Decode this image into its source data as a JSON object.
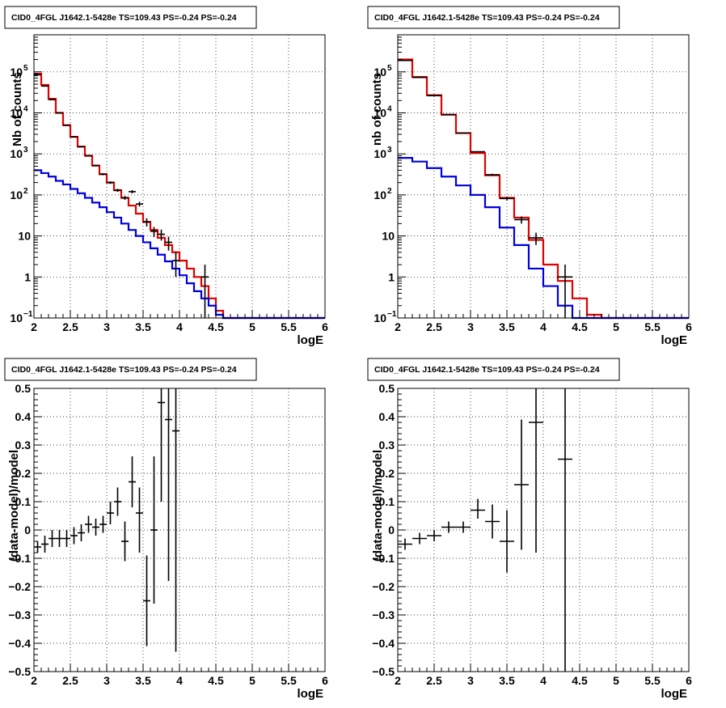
{
  "chart_data": [
    {
      "type": "histogram",
      "title": "CID0_4FGL J1642.1-5428e TS=109.43 PS=-0.24 PS=-0.24",
      "xlabel": "logE",
      "ylabel": "Nb of counts",
      "xlim": [
        2,
        6
      ],
      "ylim": [
        0.1,
        800000
      ],
      "yscale": "log",
      "grid": true,
      "xticks": [
        "2",
        "2.5",
        "3",
        "3.5",
        "4",
        "4.5",
        "5",
        "5.5",
        "6"
      ],
      "yticks": [
        {
          "base": "10",
          "exp": "−1",
          "value": 0.1
        },
        {
          "base": "1",
          "exp": "",
          "value": 1
        },
        {
          "base": "10",
          "exp": "",
          "value": 10
        },
        {
          "base": "10",
          "exp": "2",
          "value": 100
        },
        {
          "base": "10",
          "exp": "3",
          "value": 1000
        },
        {
          "base": "10",
          "exp": "4",
          "value": 10000
        },
        {
          "base": "10",
          "exp": "5",
          "value": 100000
        }
      ],
      "bin_edges": [
        2.0,
        2.1,
        2.2,
        2.3,
        2.4,
        2.5,
        2.6,
        2.7,
        2.8,
        2.9,
        3.0,
        3.1,
        3.2,
        3.3,
        3.4,
        3.5,
        3.6,
        3.7,
        3.8,
        3.9,
        4.0,
        4.1,
        4.2,
        4.3,
        4.4,
        4.5,
        4.6,
        4.7,
        4.8,
        4.9,
        5.0,
        5.1,
        5.2,
        5.3,
        5.4,
        5.5,
        5.6,
        5.7,
        5.8,
        5.9,
        6.0
      ],
      "series": [
        {
          "color": "#e00000",
          "values": [
            90000,
            48000,
            22000,
            10000,
            5000,
            2600,
            1500,
            900,
            520,
            320,
            200,
            130,
            85,
            55,
            35,
            22,
            14,
            9,
            6,
            4,
            2.5,
            1.6,
            1.0,
            0.6,
            0.3,
            0.15,
            0.1,
            0.1,
            0.1,
            0.1,
            0.1,
            0.1,
            0.1,
            0.1,
            0.1,
            0.1,
            0.1,
            0.1,
            0.1,
            0.1
          ]
        },
        {
          "color": "#0000dd",
          "values": [
            400,
            340,
            280,
            220,
            180,
            140,
            110,
            85,
            65,
            50,
            38,
            28,
            20,
            14,
            10,
            7,
            5,
            3.5,
            2.4,
            1.6,
            1.1,
            0.7,
            0.45,
            0.3,
            0.2,
            0.12,
            0.1,
            0.1,
            0.1,
            0.1,
            0.1,
            0.1,
            0.1,
            0.1,
            0.1,
            0.1,
            0.1,
            0.1,
            0.1,
            0.1
          ]
        }
      ],
      "data_points": {
        "color": "#000000",
        "x_halfwidth": 0.05,
        "x": [
          2.05,
          2.15,
          2.25,
          2.35,
          2.45,
          2.55,
          2.65,
          2.75,
          2.85,
          2.95,
          3.05,
          3.15,
          3.25,
          3.35,
          3.45,
          3.55,
          3.65,
          3.75,
          3.85,
          3.95,
          4.35
        ],
        "y": [
          85000,
          45000,
          21000,
          10000,
          5000,
          2600,
          1500,
          900,
          520,
          320,
          200,
          130,
          85,
          120,
          60,
          22,
          13,
          11,
          7,
          2.5,
          1
        ],
        "ylo": [
          84500,
          44800,
          20850,
          9900,
          4930,
          2550,
          1460,
          870,
          497,
          302,
          186,
          119,
          76,
          109,
          52,
          17,
          9.4,
          7.7,
          4.4,
          1.0,
          0.1
        ],
        "yhi": [
          85500,
          45200,
          21150,
          10100,
          5070,
          2650,
          1540,
          930,
          543,
          338,
          214,
          141,
          94,
          131,
          68,
          27,
          16.6,
          14.3,
          9.6,
          4.0,
          2.0
        ]
      }
    },
    {
      "type": "histogram",
      "title": "CID0_4FGL J1642.1-5428e TS=109.43 PS=-0.24 PS=-0.24",
      "xlabel": "logE",
      "ylabel": "nb of counts",
      "xlim": [
        2,
        6
      ],
      "ylim": [
        0.1,
        800000
      ],
      "yscale": "log",
      "grid": true,
      "xticks": [
        "2",
        "2.5",
        "3",
        "3.5",
        "4",
        "4.5",
        "5",
        "5.5",
        "6"
      ],
      "yticks": [
        {
          "base": "10",
          "exp": "−1",
          "value": 0.1
        },
        {
          "base": "1",
          "exp": "",
          "value": 1
        },
        {
          "base": "10",
          "exp": "",
          "value": 10
        },
        {
          "base": "10",
          "exp": "2",
          "value": 100
        },
        {
          "base": "10",
          "exp": "3",
          "value": 1000
        },
        {
          "base": "10",
          "exp": "4",
          "value": 10000
        },
        {
          "base": "10",
          "exp": "5",
          "value": 100000
        }
      ],
      "bin_edges": [
        2.0,
        2.2,
        2.4,
        2.6,
        2.8,
        3.0,
        3.2,
        3.4,
        3.6,
        3.8,
        4.0,
        4.2,
        4.4,
        4.6,
        4.8,
        5.0,
        5.2,
        5.4,
        5.6,
        5.8,
        6.0
      ],
      "series": [
        {
          "color": "#e00000",
          "values": [
            200000,
            75000,
            27000,
            9000,
            3200,
            1050,
            300,
            85,
            28,
            8,
            2.0,
            0.8,
            0.3,
            0.12,
            0.1,
            0.1,
            0.1,
            0.1,
            0.1,
            0.1
          ]
        },
        {
          "color": "#0000dd",
          "values": [
            800,
            650,
            450,
            280,
            170,
            100,
            50,
            16,
            6,
            1.6,
            0.6,
            0.2,
            0.1,
            0.1,
            0.1,
            0.1,
            0.1,
            0.1,
            0.1,
            0.1
          ]
        }
      ],
      "data_points": {
        "color": "#000000",
        "x_halfwidth": 0.1,
        "x": [
          2.1,
          2.3,
          2.5,
          2.7,
          2.9,
          3.1,
          3.3,
          3.5,
          3.7,
          3.9,
          4.3
        ],
        "y": [
          190000,
          73000,
          26300,
          9100,
          3250,
          1130,
          310,
          82,
          25,
          9,
          1
        ],
        "ylo": [
          189560,
          72730,
          26140,
          9000,
          3190,
          1096,
          292,
          73,
          20,
          6,
          0.1
        ],
        "yhi": [
          190440,
          73270,
          26460,
          9200,
          3310,
          1164,
          328,
          91,
          30,
          12,
          2.0
        ]
      }
    },
    {
      "type": "scatter",
      "title": "CID0_4FGL J1642.1-5428e TS=109.43 PS=-0.24 PS=-0.24",
      "xlabel": "logE",
      "ylabel": "(data-model)/model",
      "xlim": [
        2,
        6
      ],
      "ylim": [
        -0.5,
        0.5
      ],
      "yscale": "linear",
      "grid": true,
      "xticks": [
        "2",
        "2.5",
        "3",
        "3.5",
        "4",
        "4.5",
        "5",
        "5.5",
        "6"
      ],
      "yticks": [
        {
          "base": "−0.5",
          "exp": "",
          "value": -0.5
        },
        {
          "base": "−0.4",
          "exp": "",
          "value": -0.4
        },
        {
          "base": "−0.3",
          "exp": "",
          "value": -0.3
        },
        {
          "base": "−0.2",
          "exp": "",
          "value": -0.2
        },
        {
          "base": "−0.1",
          "exp": "",
          "value": -0.1
        },
        {
          "base": "0",
          "exp": "",
          "value": 0
        },
        {
          "base": "0.1",
          "exp": "",
          "value": 0.1
        },
        {
          "base": "0.2",
          "exp": "",
          "value": 0.2
        },
        {
          "base": "0.3",
          "exp": "",
          "value": 0.3
        },
        {
          "base": "0.4",
          "exp": "",
          "value": 0.4
        },
        {
          "base": "0.5",
          "exp": "",
          "value": 0.5
        }
      ],
      "data_points": {
        "color": "#000000",
        "x_halfwidth": 0.05,
        "x": [
          2.05,
          2.15,
          2.25,
          2.35,
          2.45,
          2.55,
          2.65,
          2.75,
          2.85,
          2.95,
          3.05,
          3.15,
          3.25,
          3.35,
          3.45,
          3.55,
          3.65,
          3.75,
          3.85,
          3.95
        ],
        "y": [
          -0.06,
          -0.05,
          -0.03,
          -0.03,
          -0.03,
          -0.02,
          -0.01,
          0.02,
          0.01,
          0.02,
          0.06,
          0.1,
          -0.04,
          0.17,
          0.06,
          -0.25,
          0.0,
          0.45,
          0.39,
          0.35
        ],
        "ylo": [
          -0.08,
          -0.08,
          -0.06,
          -0.06,
          -0.06,
          -0.05,
          -0.04,
          -0.01,
          -0.02,
          -0.01,
          0.02,
          0.05,
          -0.11,
          0.08,
          -0.08,
          -0.41,
          -0.26,
          0.1,
          -0.18,
          -0.43
        ],
        "yhi": [
          -0.04,
          -0.02,
          0.0,
          0.0,
          0.0,
          0.01,
          0.02,
          0.05,
          0.04,
          0.05,
          0.1,
          0.15,
          0.03,
          0.26,
          0.15,
          -0.09,
          0.26,
          0.5,
          0.5,
          0.5
        ]
      }
    },
    {
      "type": "scatter",
      "title": "CID0_4FGL J1642.1-5428e TS=109.43 PS=-0.24 PS=-0.24",
      "xlabel": "logE",
      "ylabel": "(data-model)/model",
      "xlim": [
        2,
        6
      ],
      "ylim": [
        -0.5,
        0.5
      ],
      "yscale": "linear",
      "grid": true,
      "xticks": [
        "2",
        "2.5",
        "3",
        "3.5",
        "4",
        "4.5",
        "5",
        "5.5",
        "6"
      ],
      "yticks": [
        {
          "base": "−0.5",
          "exp": "",
          "value": -0.5
        },
        {
          "base": "−0.4",
          "exp": "",
          "value": -0.4
        },
        {
          "base": "−0.3",
          "exp": "",
          "value": -0.3
        },
        {
          "base": "−0.2",
          "exp": "",
          "value": -0.2
        },
        {
          "base": "−0.1",
          "exp": "",
          "value": -0.1
        },
        {
          "base": "0",
          "exp": "",
          "value": 0
        },
        {
          "base": "0.1",
          "exp": "",
          "value": 0.1
        },
        {
          "base": "0.2",
          "exp": "",
          "value": 0.2
        },
        {
          "base": "0.3",
          "exp": "",
          "value": 0.3
        },
        {
          "base": "0.4",
          "exp": "",
          "value": 0.4
        },
        {
          "base": "0.5",
          "exp": "",
          "value": 0.5
        }
      ],
      "data_points": {
        "color": "#000000",
        "x_halfwidth": 0.1,
        "x": [
          2.1,
          2.3,
          2.5,
          2.7,
          2.9,
          3.1,
          3.3,
          3.5,
          3.7,
          3.9,
          4.3
        ],
        "y": [
          -0.05,
          -0.03,
          -0.02,
          0.01,
          0.01,
          0.07,
          0.03,
          -0.04,
          0.16,
          0.38,
          0.25
        ],
        "ylo": [
          -0.07,
          -0.05,
          -0.04,
          -0.01,
          -0.01,
          0.04,
          -0.03,
          -0.15,
          -0.07,
          -0.08,
          -0.5
        ],
        "yhi": [
          -0.03,
          -0.01,
          0.0,
          0.03,
          0.03,
          0.11,
          0.09,
          0.07,
          0.39,
          0.5,
          0.5
        ]
      }
    }
  ]
}
